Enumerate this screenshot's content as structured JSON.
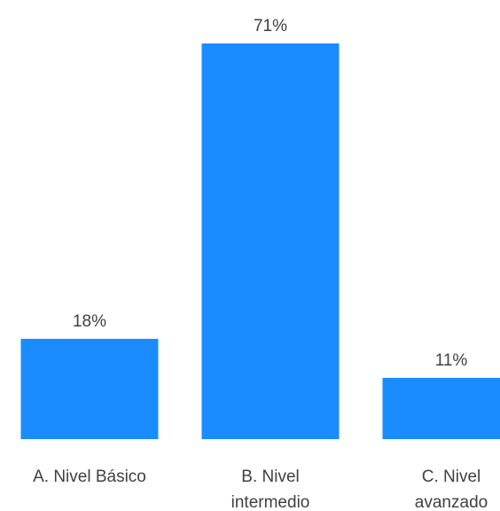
{
  "chart_data": {
    "type": "bar",
    "categories": [
      "A. Nivel Básico",
      "B. Nivel intermedio",
      "C. Nivel avanzado"
    ],
    "category_lines": [
      [
        "A. Nivel Básico"
      ],
      [
        "B. Nivel",
        "intermedio"
      ],
      [
        "C. Nivel",
        "avanzado"
      ]
    ],
    "values": [
      18,
      71,
      11
    ],
    "data_labels": [
      "18%",
      "71%",
      "11%"
    ],
    "ylim": [
      0,
      71
    ],
    "bar_color": "#1a8cff",
    "label_color": "#404040",
    "grid": false,
    "legend": "none"
  }
}
